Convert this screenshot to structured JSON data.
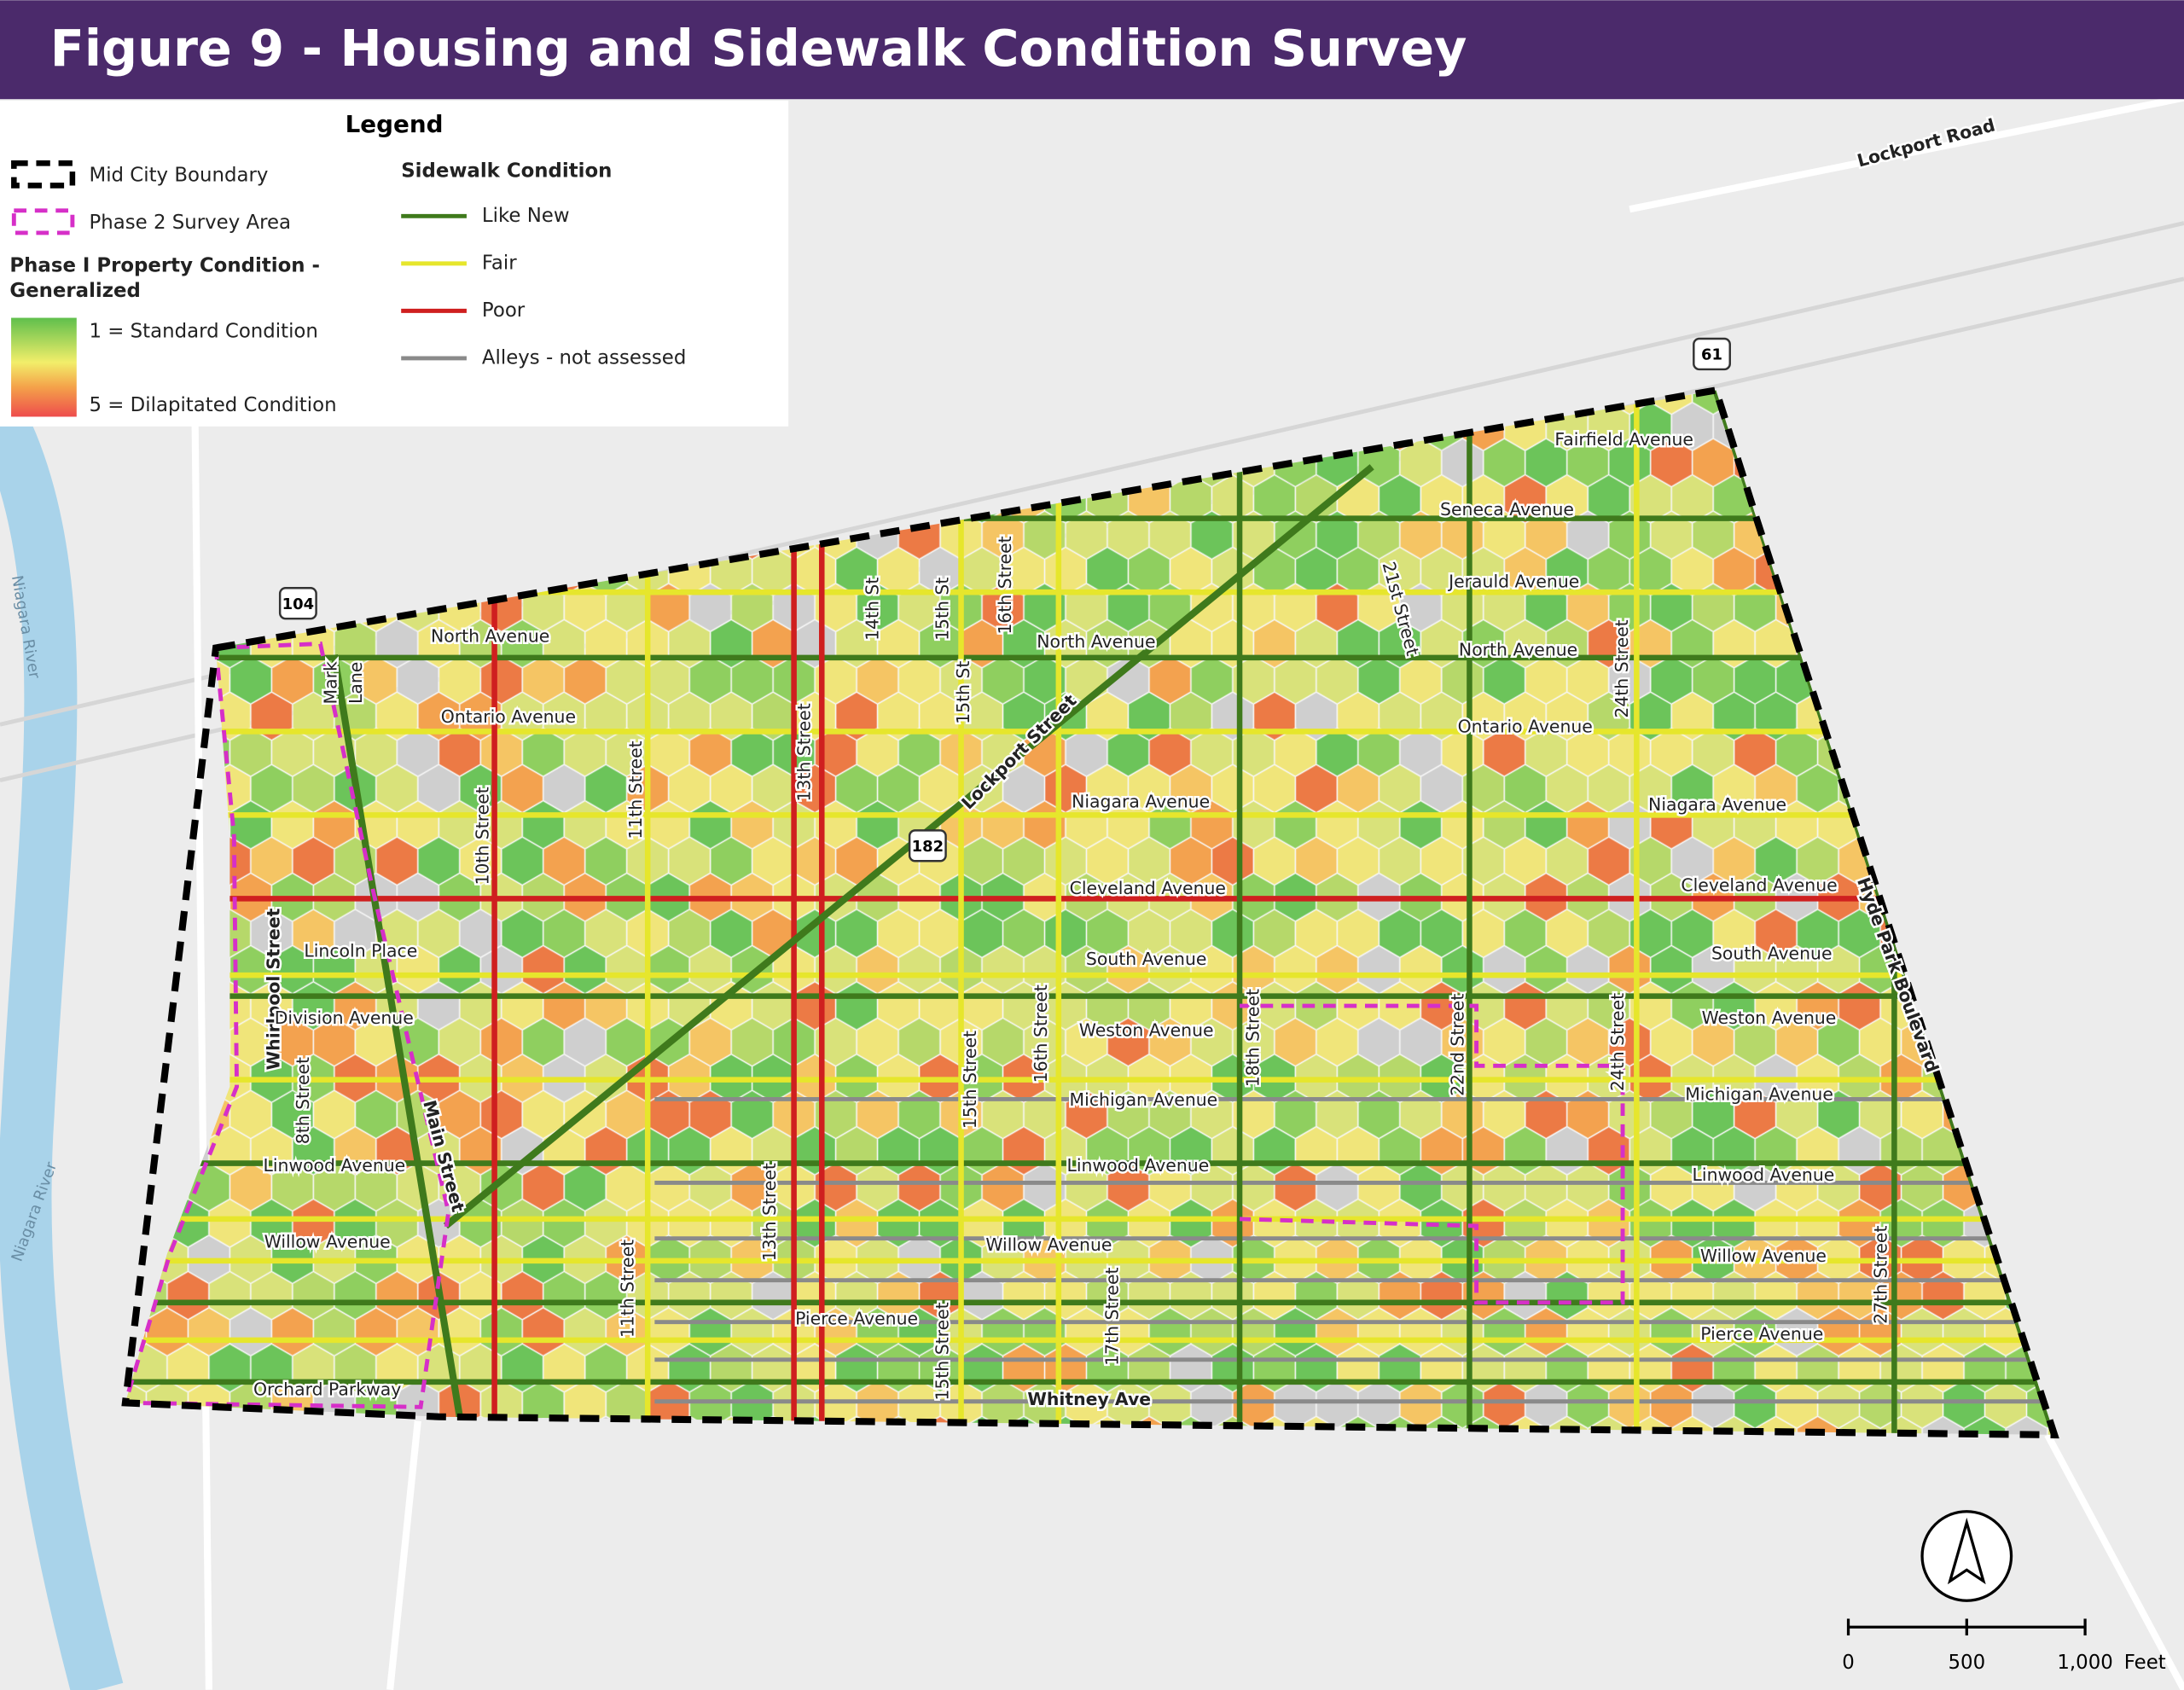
{
  "header": {
    "title": "Figure 9 - Housing and Sidewalk Condition Survey"
  },
  "legend": {
    "title": "Legend",
    "boundary_items": [
      "Mid City Boundary",
      "Phase 2 Survey Area"
    ],
    "property_title": [
      "Phase I Property Condition -",
      "Generalized"
    ],
    "property_scale": [
      "1 = Standard Condition",
      "5 = Dilapitated Condition"
    ],
    "sidewalk_title": "Sidewalk Condition",
    "sidewalk_items": [
      {
        "label": "Like New",
        "color": "#3f7a1c"
      },
      {
        "label": "Fair",
        "color": "#e6e62c"
      },
      {
        "label": "Poor",
        "color": "#cf1f1f"
      },
      {
        "label": "Alleys - not assessed",
        "color": "#8a8a8a"
      }
    ]
  },
  "map": {
    "labels": [
      "Lockport Road",
      "Fairfield Avenue",
      "Seneca Avenue",
      "Jerauld Avenue",
      "North Avenue",
      "Ontario Avenue",
      "North Avenue",
      "North Avenue",
      "Ontario Avenue",
      "Mark",
      "Lane",
      "14th St",
      "15th St",
      "16th Street",
      "15th St",
      "Lockport Street",
      "21st Street",
      "24th Street",
      "13th Street",
      "11th Street",
      "10th Street",
      "Niagara Avenue",
      "Niagara Avenue",
      "Cleveland Avenue",
      "Cleveland Avenue",
      "Hyde Park Boulevard",
      "South Avenue",
      "South Avenue",
      "Whirlpool Street",
      "Lincoln Place",
      "Division Avenue",
      "8th Street",
      "Main Street",
      "Weston Avenue",
      "Weston Avenue",
      "16th Street",
      "15th Street",
      "18th Street",
      "22nd Street",
      "24th Street",
      "Michigan Avenue",
      "Michigan Avenue",
      "Linwood Avenue",
      "Linwood Avenue",
      "Linwood Avenue",
      "Willow Avenue",
      "Willow Avenue",
      "Willow Avenue",
      "11th Street",
      "13th Street",
      "17th Street",
      "15th Street",
      "27th Street",
      "Pierce Avenue",
      "Pierce Avenue",
      "Orchard Parkway",
      "Whitney Ave"
    ],
    "routes": [
      "61",
      "104",
      "182"
    ],
    "rivers": [
      "Niagara River",
      "Niagara River"
    ]
  },
  "scale_bar": {
    "ticks": [
      "0",
      "500",
      "1,000"
    ],
    "unit": "Feet"
  }
}
